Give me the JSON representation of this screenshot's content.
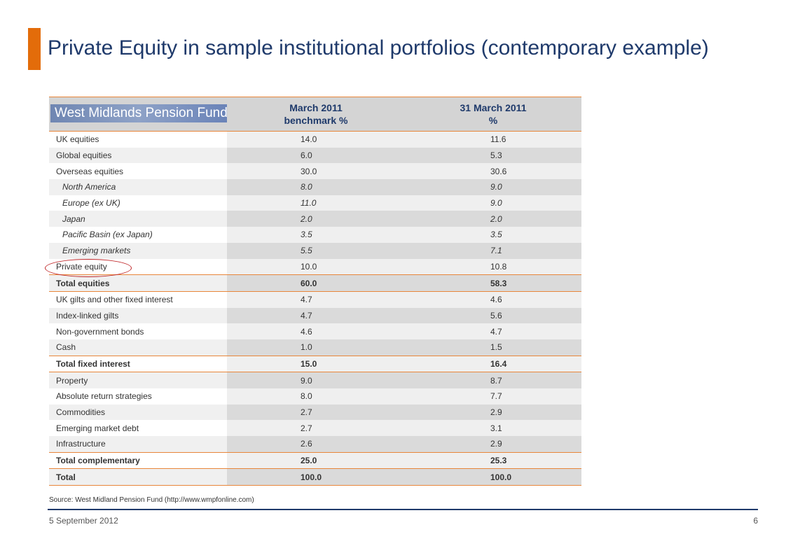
{
  "slide": {
    "title": "Private Equity in sample institutional portfolios (contemporary example)",
    "accent_color": "#e36c0a",
    "title_color": "#1f3a6b"
  },
  "table": {
    "logo_text": "West Midlands Pension Fund",
    "col1_header_line1": "March 2011",
    "col1_header_line2": "benchmark %",
    "col2_header_line1": "31 March 2011",
    "col2_header_line2": "%",
    "rows": [
      {
        "label": "UK equities",
        "benchmark": "14.0",
        "actual": "11.6",
        "kind": "normal"
      },
      {
        "label": "Global equities",
        "benchmark": "6.0",
        "actual": "5.3",
        "kind": "normal"
      },
      {
        "label": "Overseas equities",
        "benchmark": "30.0",
        "actual": "30.6",
        "kind": "normal"
      },
      {
        "label": "North America",
        "benchmark": "8.0",
        "actual": "9.0",
        "kind": "sub"
      },
      {
        "label": "Europe (ex UK)",
        "benchmark": "11.0",
        "actual": "9.0",
        "kind": "sub"
      },
      {
        "label": "Japan",
        "benchmark": "2.0",
        "actual": "2.0",
        "kind": "sub"
      },
      {
        "label": "Pacific Basin (ex Japan)",
        "benchmark": "3.5",
        "actual": "3.5",
        "kind": "sub"
      },
      {
        "label": "Emerging markets",
        "benchmark": "5.5",
        "actual": "7.1",
        "kind": "sub"
      },
      {
        "label": "Private equity",
        "benchmark": "10.0",
        "actual": "10.8",
        "kind": "normal"
      },
      {
        "label": "Total equities",
        "benchmark": "60.0",
        "actual": "58.3",
        "kind": "total"
      },
      {
        "label": "UK gilts and other fixed interest",
        "benchmark": "4.7",
        "actual": "4.6",
        "kind": "normal"
      },
      {
        "label": "Index-linked gilts",
        "benchmark": "4.7",
        "actual": "5.6",
        "kind": "normal"
      },
      {
        "label": "Non-government bonds",
        "benchmark": "4.6",
        "actual": "4.7",
        "kind": "normal"
      },
      {
        "label": "Cash",
        "benchmark": "1.0",
        "actual": "1.5",
        "kind": "normal"
      },
      {
        "label": "Total fixed interest",
        "benchmark": "15.0",
        "actual": "16.4",
        "kind": "total"
      },
      {
        "label": "Property",
        "benchmark": "9.0",
        "actual": "8.7",
        "kind": "normal"
      },
      {
        "label": "Absolute return strategies",
        "benchmark": "8.0",
        "actual": "7.7",
        "kind": "normal"
      },
      {
        "label": "Commodities",
        "benchmark": "2.7",
        "actual": "2.9",
        "kind": "normal"
      },
      {
        "label": "Emerging market  debt",
        "benchmark": "2.7",
        "actual": "3.1",
        "kind": "normal"
      },
      {
        "label": "Infrastructure",
        "benchmark": "2.6",
        "actual": "2.9",
        "kind": "normal"
      },
      {
        "label": "Total complementary",
        "benchmark": "25.0",
        "actual": "25.3",
        "kind": "total"
      },
      {
        "label": "Total",
        "benchmark": "100.0",
        "actual": "100.0",
        "kind": "total"
      }
    ]
  },
  "source": "Source: West Midland Pension Fund (http://www.wmpfonline.com)",
  "footer": {
    "date": "5 September 2012",
    "page": "6"
  }
}
